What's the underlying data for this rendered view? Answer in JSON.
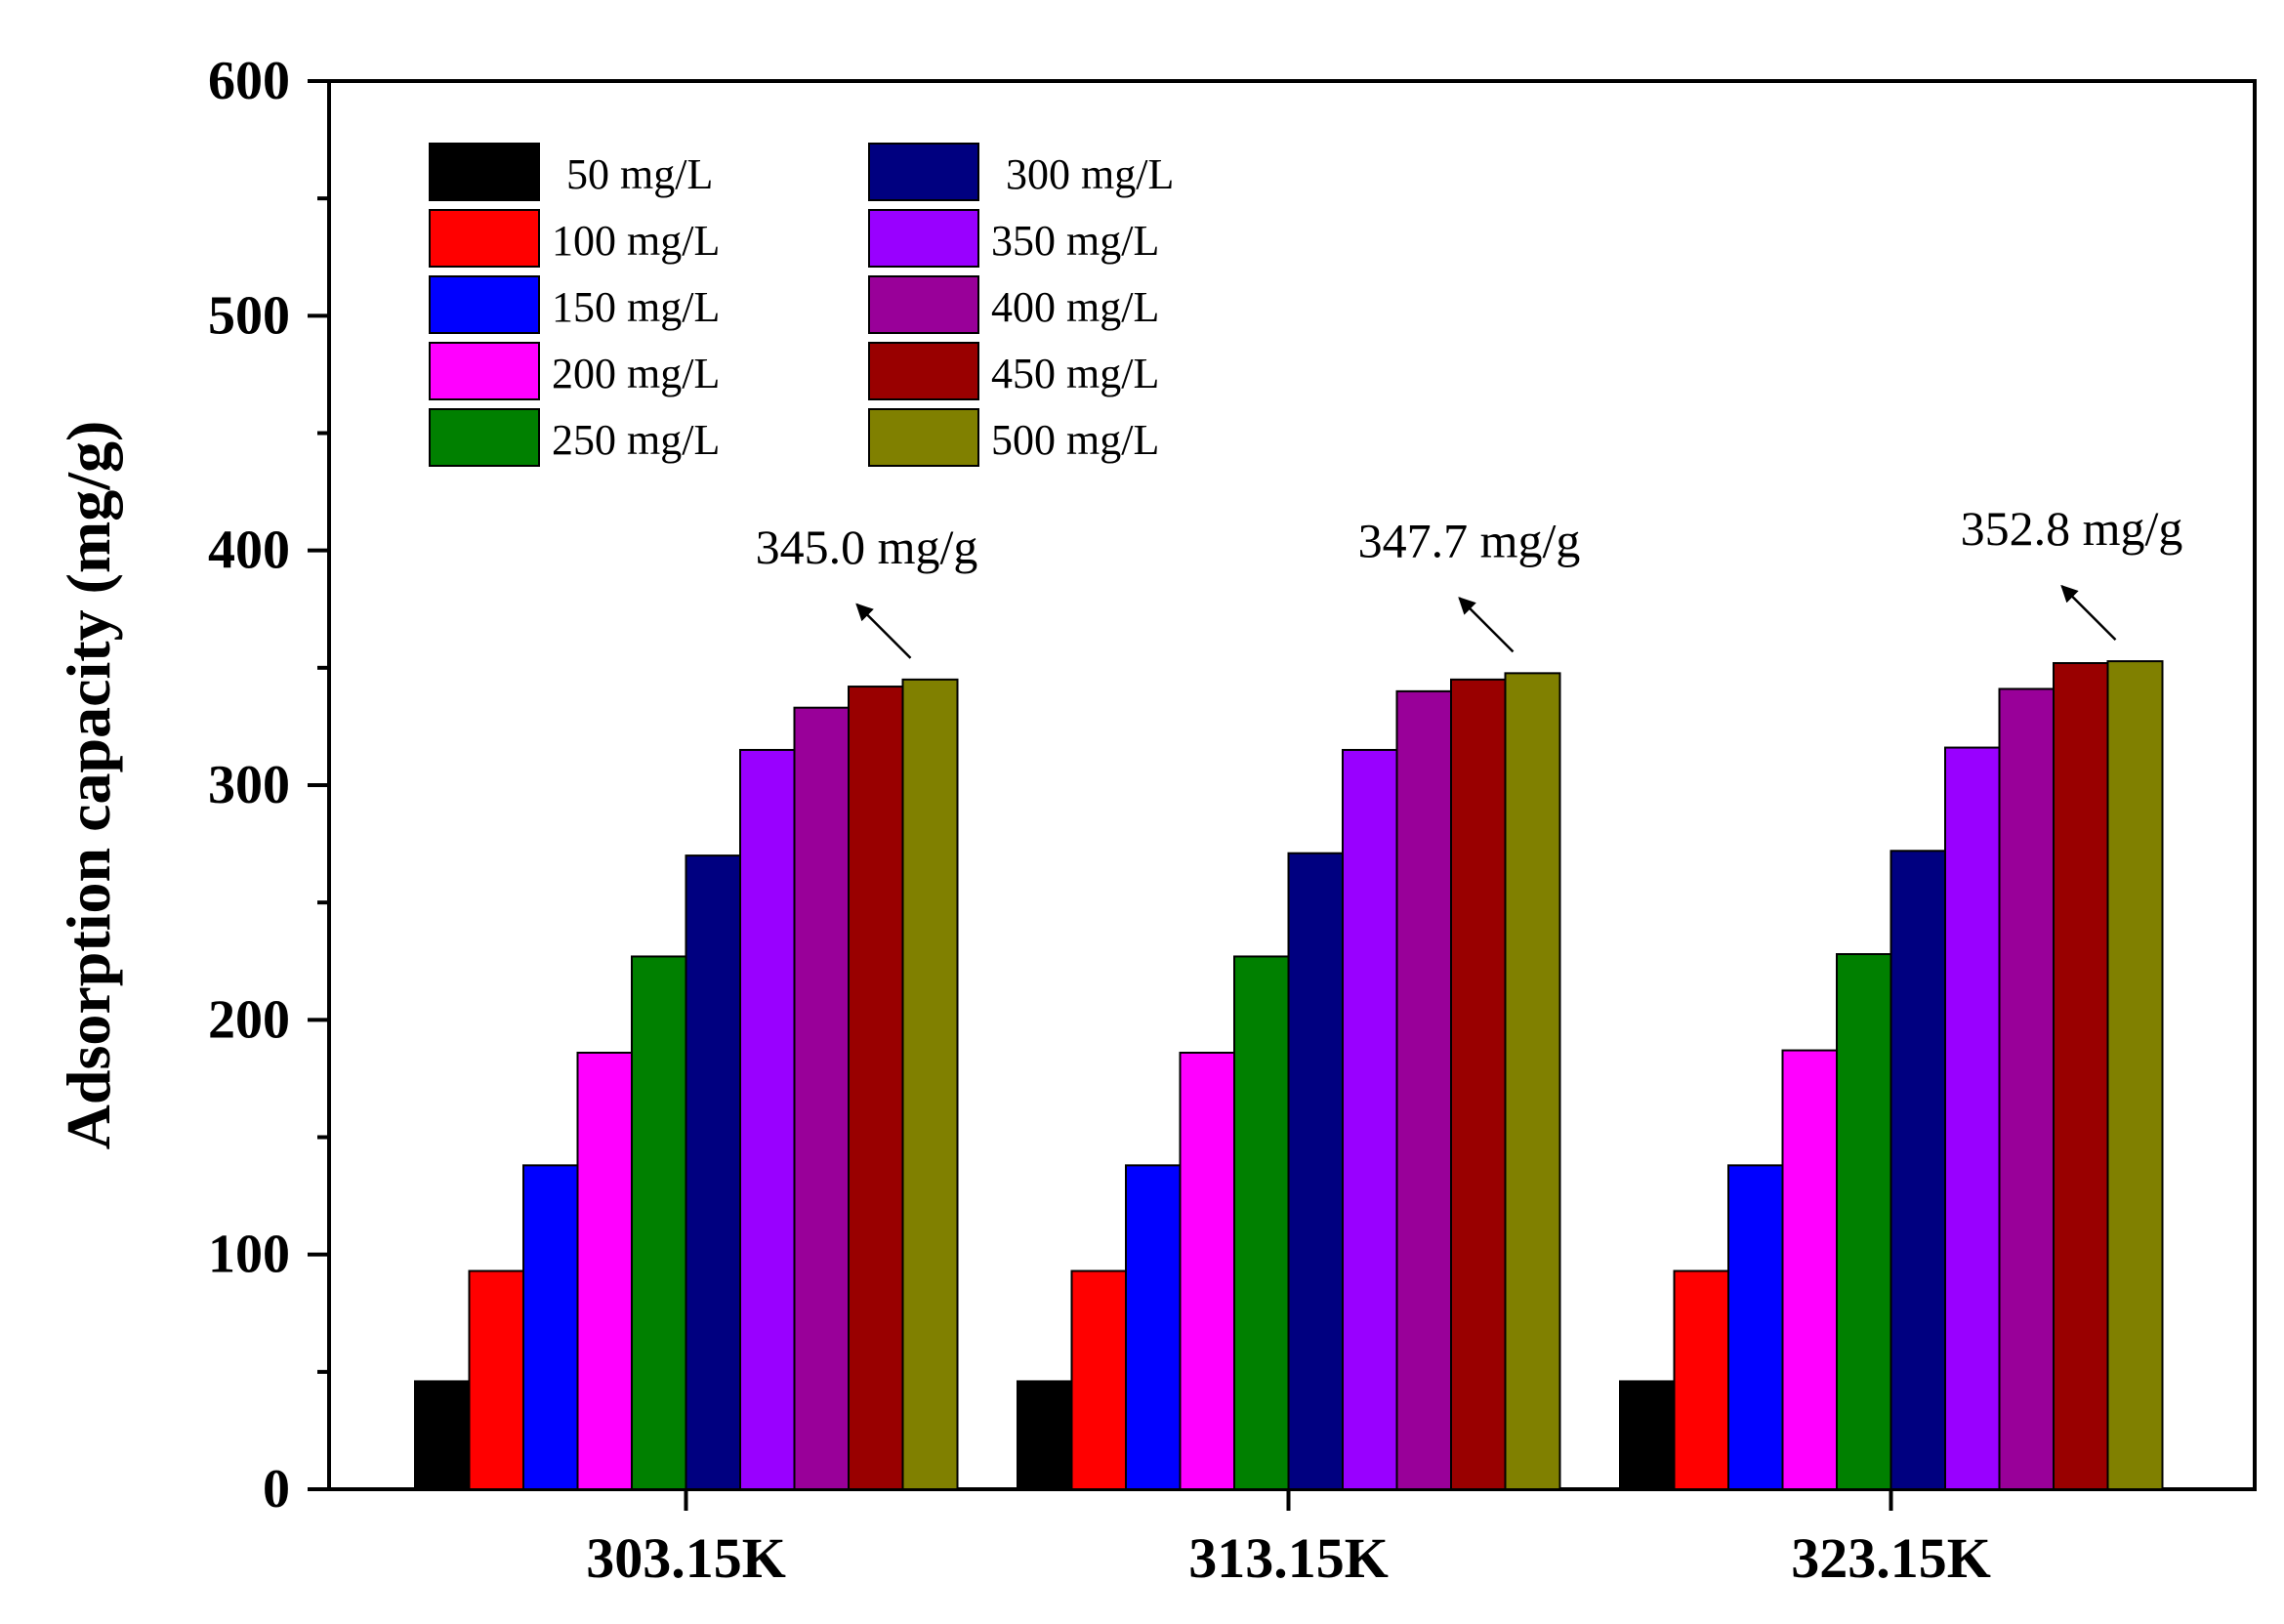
{
  "chart_data": {
    "type": "bar",
    "title": "",
    "xlabel": "",
    "ylabel": "Adsorption capacity (mg/g)",
    "ylim": [
      0,
      600
    ],
    "yticks": [
      0,
      100,
      200,
      300,
      400,
      500,
      600
    ],
    "grid": false,
    "legend_position": "top-left",
    "categories": [
      "303.15K",
      "313.15K",
      "323.15K"
    ],
    "series": [
      {
        "name": "50 mg/L",
        "color": "#000000",
        "values": [
          46,
          46,
          46
        ]
      },
      {
        "name": "100 mg/L",
        "color": "#FF0000",
        "values": [
          93,
          93,
          93
        ]
      },
      {
        "name": "150 mg/L",
        "color": "#0000FF",
        "values": [
          138,
          138,
          138
        ]
      },
      {
        "name": "200 mg/L",
        "color": "#FF00FF",
        "values": [
          186,
          186,
          187
        ]
      },
      {
        "name": "250 mg/L",
        "color": "#008000",
        "values": [
          227,
          227,
          228
        ]
      },
      {
        "name": "300 mg/L",
        "color": "#000080",
        "values": [
          270,
          271,
          272
        ]
      },
      {
        "name": "350 mg/L",
        "color": "#9900FF",
        "values": [
          315,
          315,
          316
        ]
      },
      {
        "name": "400 mg/L",
        "color": "#990099",
        "values": [
          333,
          340,
          341
        ]
      },
      {
        "name": "450 mg/L",
        "color": "#990000",
        "values": [
          342,
          345,
          352
        ]
      },
      {
        "name": "500 mg/L",
        "color": "#808000",
        "values": [
          345.0,
          347.7,
          352.8
        ]
      }
    ],
    "annotations": [
      {
        "text": "345.0 mg/g",
        "category": "303.15K"
      },
      {
        "text": "347.7 mg/g",
        "category": "313.15K"
      },
      {
        "text": "352.8 mg/g",
        "category": "323.15K"
      }
    ]
  }
}
